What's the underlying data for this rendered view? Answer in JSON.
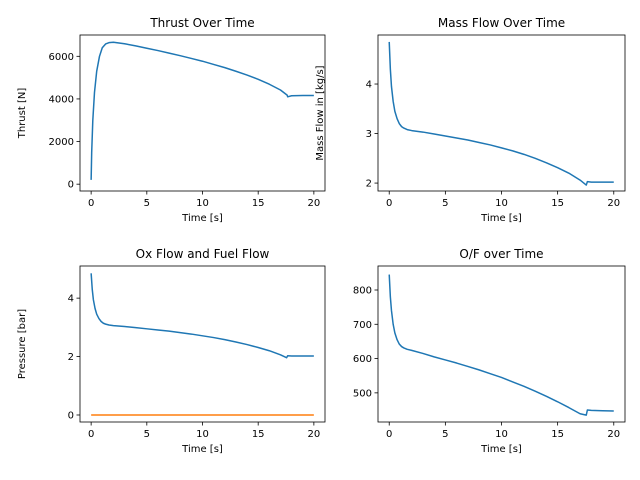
{
  "chart_data": [
    {
      "type": "line",
      "title": "Thrust Over Time",
      "xlabel": "Time [s]",
      "ylabel": "Thrust [N]",
      "xlim": [
        -1,
        21
      ],
      "ylim": [
        -320,
        7000
      ],
      "xticks": [
        0,
        5,
        10,
        15,
        20
      ],
      "yticks": [
        0,
        2000,
        4000,
        6000
      ],
      "grid": false,
      "series": [
        {
          "color": "#1f77b4",
          "x": [
            0,
            0.05,
            0.15,
            0.3,
            0.5,
            0.75,
            1.0,
            1.3,
            1.6,
            2.0,
            3.0,
            4.0,
            5.0,
            6.0,
            7.0,
            8.0,
            9.0,
            10.0,
            11.0,
            12.0,
            13.0,
            14.0,
            15.0,
            16.0,
            17.0,
            17.6,
            17.65,
            18.0,
            19.0,
            20.0
          ],
          "y": [
            200,
            1500,
            3000,
            4300,
            5300,
            6000,
            6400,
            6580,
            6640,
            6660,
            6590,
            6490,
            6380,
            6270,
            6150,
            6030,
            5900,
            5770,
            5620,
            5470,
            5300,
            5120,
            4920,
            4690,
            4420,
            4180,
            4100,
            4150,
            4160,
            4160
          ]
        }
      ]
    },
    {
      "type": "line",
      "title": "Mass Flow Over Time",
      "xlabel": "Time [s]",
      "ylabel": "Mass Flow in [kg/s]",
      "xlim": [
        -1,
        21
      ],
      "ylim": [
        1.84,
        4.99
      ],
      "xticks": [
        0,
        5,
        10,
        15,
        20
      ],
      "yticks": [
        2,
        3,
        4
      ],
      "grid": false,
      "series": [
        {
          "color": "#1f77b4",
          "x": [
            0,
            0.1,
            0.2,
            0.35,
            0.5,
            0.7,
            0.9,
            1.1,
            1.3,
            1.6,
            2.0,
            3.0,
            4.0,
            5.0,
            6.0,
            7.0,
            8.0,
            9.0,
            10.0,
            11.0,
            12.0,
            13.0,
            14.0,
            15.0,
            16.0,
            17.0,
            17.55,
            17.65,
            18.0,
            19.0,
            20.0
          ],
          "y": [
            4.85,
            4.3,
            3.95,
            3.65,
            3.45,
            3.3,
            3.2,
            3.14,
            3.11,
            3.08,
            3.06,
            3.03,
            2.99,
            2.95,
            2.91,
            2.87,
            2.82,
            2.77,
            2.71,
            2.65,
            2.58,
            2.5,
            2.41,
            2.31,
            2.2,
            2.06,
            1.96,
            2.03,
            2.02,
            2.02,
            2.02
          ]
        }
      ]
    },
    {
      "type": "line",
      "title": "Ox Flow and Fuel Flow",
      "xlabel": "Time [s]",
      "ylabel": "Pressure [bar]",
      "xlim": [
        -1,
        21
      ],
      "ylim": [
        -0.24,
        5.1
      ],
      "xticks": [
        0,
        5,
        10,
        15,
        20
      ],
      "yticks": [
        0,
        2,
        4
      ],
      "grid": false,
      "series": [
        {
          "color": "#1f77b4",
          "x": [
            0,
            0.1,
            0.2,
            0.35,
            0.5,
            0.7,
            0.9,
            1.1,
            1.3,
            1.6,
            2.0,
            3.0,
            4.0,
            5.0,
            6.0,
            7.0,
            8.0,
            9.0,
            10.0,
            11.0,
            12.0,
            13.0,
            14.0,
            15.0,
            16.0,
            17.0,
            17.55,
            17.65,
            18.0,
            19.0,
            20.0
          ],
          "y": [
            4.85,
            4.3,
            3.95,
            3.65,
            3.45,
            3.3,
            3.2,
            3.14,
            3.11,
            3.08,
            3.06,
            3.03,
            2.99,
            2.95,
            2.91,
            2.87,
            2.82,
            2.77,
            2.71,
            2.65,
            2.58,
            2.5,
            2.41,
            2.31,
            2.2,
            2.06,
            1.96,
            2.03,
            2.02,
            2.02,
            2.02
          ]
        },
        {
          "color": "#ff7f0e",
          "x": [
            0,
            20
          ],
          "y": [
            0.0,
            0.0
          ]
        }
      ]
    },
    {
      "type": "line",
      "title": "O/F over Time",
      "xlabel": "Time [s]",
      "ylabel": "",
      "xlim": [
        -1,
        21
      ],
      "ylim": [
        415,
        870
      ],
      "xticks": [
        0,
        5,
        10,
        15,
        20
      ],
      "yticks": [
        500,
        600,
        700,
        800
      ],
      "grid": false,
      "series": [
        {
          "color": "#1f77b4",
          "x": [
            0,
            0.1,
            0.2,
            0.35,
            0.5,
            0.7,
            0.9,
            1.1,
            1.3,
            1.6,
            2.0,
            3.0,
            4.0,
            5.0,
            6.0,
            7.0,
            8.0,
            9.0,
            10.0,
            11.0,
            12.0,
            13.0,
            14.0,
            15.0,
            16.0,
            17.0,
            17.55,
            17.65,
            18.0,
            19.0,
            20.0
          ],
          "y": [
            845,
            780,
            740,
            700,
            675,
            655,
            642,
            635,
            631,
            627,
            624,
            615,
            605,
            596,
            587,
            577,
            567,
            556,
            545,
            532,
            519,
            505,
            490,
            474,
            457,
            439,
            435,
            450,
            449,
            448,
            447
          ]
        }
      ]
    }
  ]
}
